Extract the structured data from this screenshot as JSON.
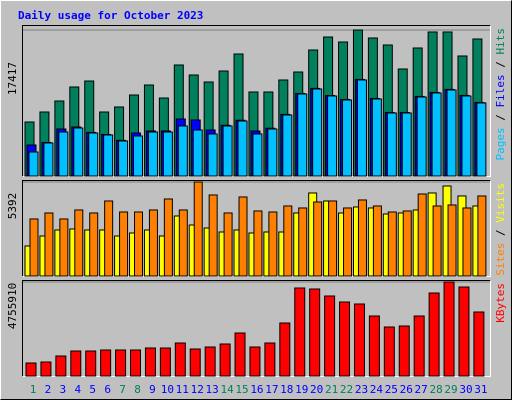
{
  "chart_data": [
    {
      "type": "bar",
      "title": "Daily usage for October 2023",
      "legend_separator": " / ",
      "ylim": [
        0,
        17417
      ],
      "yticks": [
        17417
      ],
      "series": [
        {
          "name": "Hits",
          "color": "#00805c",
          "values": [
            6442,
            7635,
            8948,
            10618,
            11333,
            7635,
            8232,
            9663,
            10856,
            9305,
            13242,
            12049,
            11214,
            12526,
            14554,
            10021,
            10021,
            11453,
            12407,
            15031,
            16582,
            15986,
            17417,
            16463,
            15628,
            12765,
            15270,
            17180,
            17180,
            14316,
            16344
          ]
        },
        {
          "name": "Files",
          "color": "#0000ff",
          "values": [
            3698,
            4000,
            5607,
            5846,
            5200,
            4950,
            4250,
            5130,
            5370,
            5370,
            6800,
            6681,
            5488,
            6050,
            6650,
            5369,
            5700,
            7350,
            9850,
            10450,
            9600,
            9130,
            11520,
            9250,
            7580,
            7580,
            9490,
            9970,
            10330,
            9610,
            8770
          ]
        },
        {
          "name": "Pages",
          "color": "#00c0ff",
          "values": [
            2863,
            3937,
            5249,
            5726,
            5130,
            4891,
            4175,
            4772,
            5249,
            5249,
            5965,
            5488,
            5010,
            5965,
            6561,
            5010,
            5607,
            7277,
            9782,
            10379,
            9544,
            9066,
            11453,
            9186,
            7516,
            7516,
            9424,
            9902,
            10260,
            9544,
            8709
          ]
        }
      ]
    },
    {
      "type": "bar",
      "ylim": [
        0,
        5392
      ],
      "yticks": [
        5392
      ],
      "series": [
        {
          "name": "Visits",
          "color": "#ffff00",
          "values": [
            1721,
            2295,
            2639,
            2697,
            2639,
            2639,
            2295,
            2467,
            2639,
            2295,
            3442,
            2926,
            2754,
            2524,
            2639,
            2467,
            2524,
            2524,
            3615,
            4762,
            4303,
            3615,
            3959,
            3902,
            3557,
            3615,
            3787,
            4762,
            5163,
            4590,
            4016
          ]
        },
        {
          "name": "Sites",
          "color": "#ff8000",
          "values": [
            3271,
            3615,
            3271,
            3787,
            3615,
            4303,
            3672,
            3672,
            3787,
            4418,
            3787,
            5392,
            4647,
            3615,
            4533,
            3730,
            3672,
            4016,
            3902,
            4246,
            4303,
            3902,
            4361,
            4016,
            3672,
            3730,
            4705,
            4016,
            4074,
            3902,
            4590
          ]
        }
      ]
    },
    {
      "type": "bar",
      "ylim": [
        0,
        4755910
      ],
      "yticks": [
        4755910
      ],
      "categories": [
        "1",
        "2",
        "3",
        "4",
        "5",
        "6",
        "7",
        "8",
        "9",
        "10",
        "11",
        "12",
        "13",
        "14",
        "15",
        "16",
        "17",
        "18",
        "19",
        "20",
        "21",
        "22",
        "23",
        "24",
        "25",
        "26",
        "27",
        "28",
        "29",
        "30",
        "31"
      ],
      "category_colors": [
        "#00805c",
        "#0000ff",
        "#0000ff",
        "#0000ff",
        "#0000ff",
        "#0000ff",
        "#00805c",
        "#00805c",
        "#0000ff",
        "#0000ff",
        "#0000ff",
        "#0000ff",
        "#0000ff",
        "#00805c",
        "#00805c",
        "#0000ff",
        "#0000ff",
        "#0000ff",
        "#0000ff",
        "#0000ff",
        "#00805c",
        "#00805c",
        "#0000ff",
        "#0000ff",
        "#0000ff",
        "#0000ff",
        "#0000ff",
        "#00805c",
        "#00805c",
        "#0000ff",
        "#0000ff"
      ],
      "series": [
        {
          "name": "KBytes",
          "color": "#ff0000",
          "values": [
            657735,
            708330,
            1011900,
            1264875,
            1264875,
            1315470,
            1315470,
            1315470,
            1416660,
            1416660,
            1669635,
            1366065,
            1467255,
            1619040,
            2175585,
            1467255,
            1669635,
            2681535,
            4452360,
            4401765,
            4047600,
            3744030,
            3642840,
            3035700,
            2479155,
            2529750,
            3035700,
            4199385,
            4755910,
            4502955,
            3238080
          ]
        }
      ]
    }
  ]
}
